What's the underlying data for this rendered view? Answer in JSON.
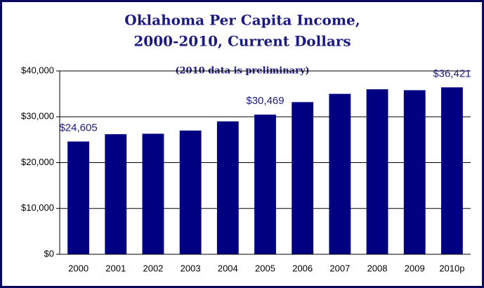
{
  "chart_data": {
    "type": "bar",
    "title": [
      "Oklahoma Per Capita Income,",
      "2000-2010, Current Dollars"
    ],
    "annotation": "(2010 data is preliminary)",
    "categories": [
      "2000",
      "2001",
      "2002",
      "2003",
      "2004",
      "2005",
      "2006",
      "2007",
      "2008",
      "2009",
      "2010p"
    ],
    "values": [
      24605,
      26200,
      26300,
      27000,
      29000,
      30469,
      33200,
      35000,
      36000,
      35800,
      36421
    ],
    "value_labels": [
      "$24,605",
      null,
      null,
      null,
      null,
      "$30,469",
      null,
      null,
      null,
      null,
      "$36,421"
    ],
    "color": "#000080",
    "ylim": [
      0,
      40000
    ],
    "yticks": [
      {
        "value": 0,
        "label": "$0"
      },
      {
        "value": 10000,
        "label": "$10,000"
      },
      {
        "value": 20000,
        "label": "$20,000"
      },
      {
        "value": 30000,
        "label": "$30,000"
      },
      {
        "value": 40000,
        "label": "$40,000"
      }
    ],
    "grid": true
  }
}
